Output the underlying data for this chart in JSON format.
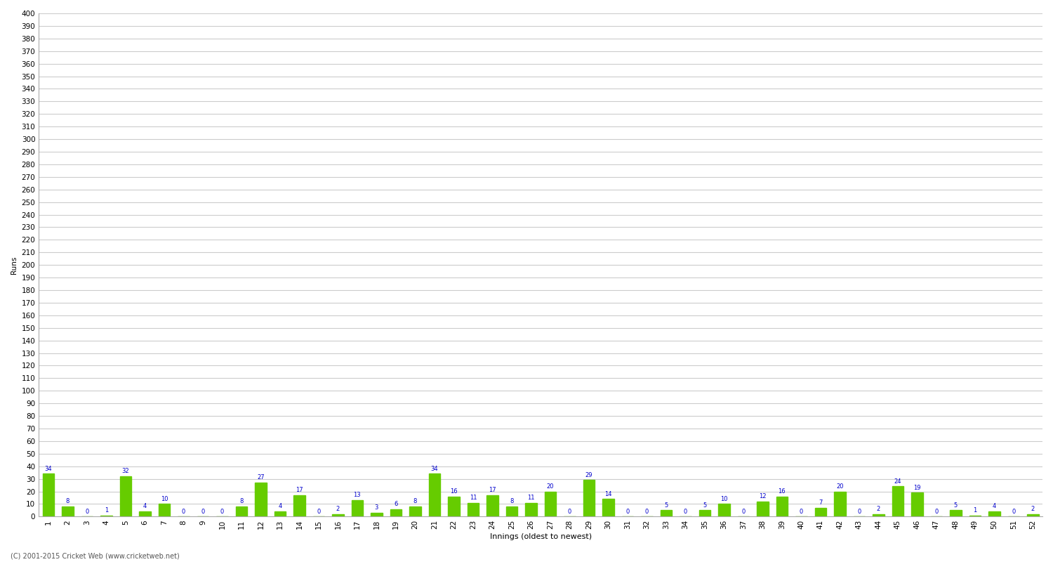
{
  "values": [
    34,
    8,
    0,
    1,
    32,
    4,
    10,
    0,
    0,
    0,
    8,
    27,
    4,
    17,
    0,
    2,
    13,
    3,
    6,
    8,
    34,
    16,
    11,
    17,
    8,
    11,
    20,
    0,
    29,
    14,
    0,
    0,
    5,
    0,
    5,
    10,
    0,
    12,
    16,
    0,
    7,
    20,
    0,
    2,
    24,
    19,
    0,
    5,
    1,
    4,
    0,
    2
  ],
  "bar_color": "#66cc00",
  "label_color": "#0000cc",
  "background_color": "#ffffff",
  "grid_color": "#cccccc",
  "ylabel": "Runs",
  "xlabel": "Innings (oldest to newest)",
  "ylim": [
    0,
    400
  ],
  "footer": "(C) 2001-2015 Cricket Web (www.cricketweb.net)",
  "footer_color": "#555555",
  "label_fontsize": 6,
  "axis_fontsize": 7.5,
  "xlabel_fontsize": 8
}
